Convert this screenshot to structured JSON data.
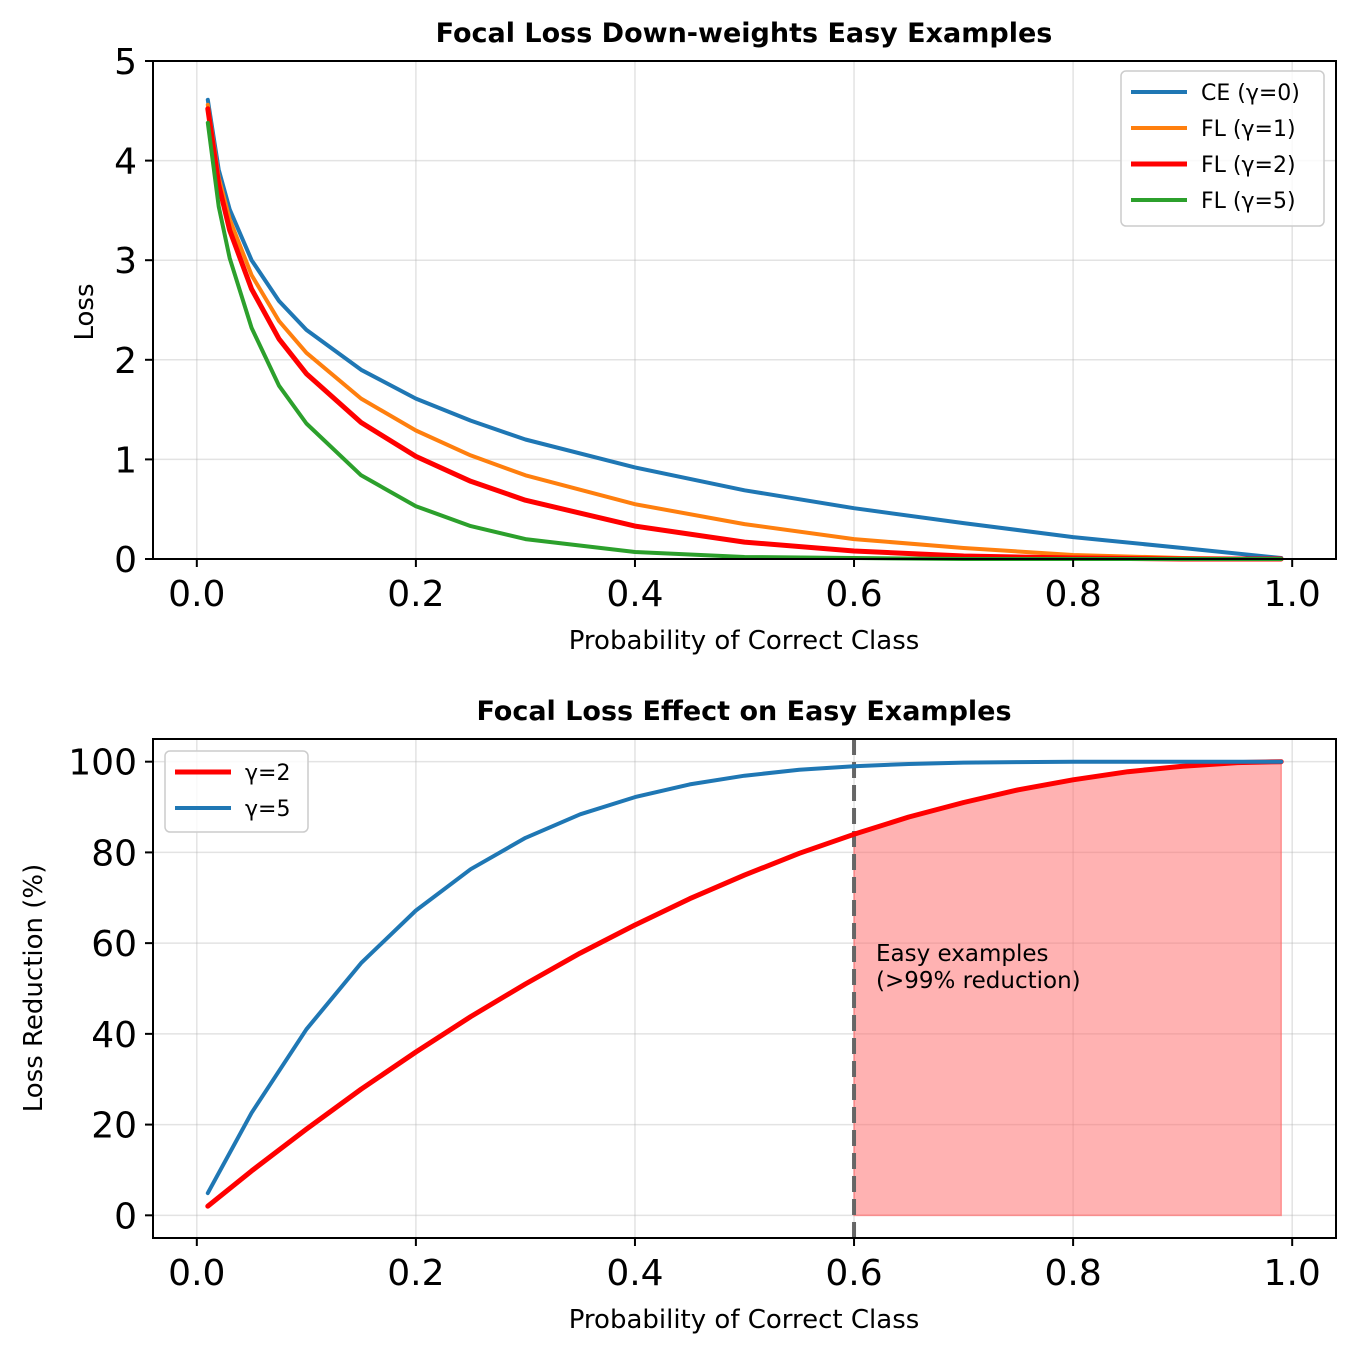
{
  "chart_data": [
    {
      "type": "line",
      "title": "Focal Loss Down-weights Easy Examples",
      "xlabel": "Probability of Correct Class",
      "ylabel": "Loss",
      "xlim": [
        -0.04,
        1.04
      ],
      "ylim": [
        0,
        5
      ],
      "xticks": [
        "0.0",
        "0.2",
        "0.4",
        "0.6",
        "0.8",
        "1.0"
      ],
      "yticks": [
        "0",
        "1",
        "2",
        "3",
        "4",
        "5"
      ],
      "grid": true,
      "legend_position": "top-right",
      "x": [
        0.01,
        0.02,
        0.03,
        0.05,
        0.075,
        0.1,
        0.15,
        0.2,
        0.25,
        0.3,
        0.4,
        0.5,
        0.6,
        0.7,
        0.8,
        0.9,
        0.99
      ],
      "series": [
        {
          "name": "CE (γ=0)",
          "color": "#1f77b4",
          "width": 4,
          "values": [
            4.61,
            3.91,
            3.51,
            3.0,
            2.59,
            2.3,
            1.9,
            1.61,
            1.39,
            1.2,
            0.92,
            0.69,
            0.51,
            0.36,
            0.22,
            0.11,
            0.01
          ]
        },
        {
          "name": "FL (γ=1)",
          "color": "#ff7f0e",
          "width": 4,
          "values": [
            4.56,
            3.83,
            3.41,
            2.85,
            2.39,
            2.07,
            1.61,
            1.29,
            1.04,
            0.84,
            0.55,
            0.35,
            0.2,
            0.11,
            0.04,
            0.01,
            0.0
          ]
        },
        {
          "name": "FL (γ=2)",
          "color": "#ff0000",
          "width": 5,
          "values": [
            4.52,
            3.76,
            3.3,
            2.71,
            2.21,
            1.86,
            1.37,
            1.03,
            0.78,
            0.59,
            0.33,
            0.17,
            0.08,
            0.03,
            0.01,
            0.0,
            0.0
          ]
        },
        {
          "name": "FL (γ=5)",
          "color": "#2ca02c",
          "width": 4,
          "values": [
            4.38,
            3.54,
            3.02,
            2.32,
            1.74,
            1.36,
            0.84,
            0.53,
            0.33,
            0.2,
            0.07,
            0.02,
            0.01,
            0.0,
            0.0,
            0.0,
            0.0
          ]
        }
      ]
    },
    {
      "type": "line",
      "title": "Focal Loss Effect on Easy Examples",
      "xlabel": "Probability of Correct Class",
      "ylabel": "Loss Reduction (%)",
      "xlim": [
        -0.04,
        1.04
      ],
      "ylim": [
        -5,
        105
      ],
      "xticks": [
        "0.0",
        "0.2",
        "0.4",
        "0.6",
        "0.8",
        "1.0"
      ],
      "yticks": [
        "0",
        "20",
        "40",
        "60",
        "80",
        "100"
      ],
      "grid": true,
      "legend_position": "top-left",
      "x": [
        0.01,
        0.05,
        0.1,
        0.15,
        0.2,
        0.25,
        0.3,
        0.35,
        0.4,
        0.45,
        0.5,
        0.55,
        0.6,
        0.65,
        0.7,
        0.75,
        0.8,
        0.85,
        0.9,
        0.95,
        0.99
      ],
      "series": [
        {
          "name": "γ=2",
          "color": "#ff0000",
          "width": 5,
          "values": [
            2.0,
            9.8,
            19.0,
            27.8,
            36.0,
            43.8,
            51.0,
            57.8,
            64.0,
            69.8,
            75.0,
            79.8,
            84.0,
            87.8,
            91.0,
            93.8,
            96.0,
            97.8,
            99.0,
            99.8,
            100.0
          ]
        },
        {
          "name": "γ=5",
          "color": "#1f77b4",
          "width": 4,
          "values": [
            4.9,
            22.6,
            41.0,
            55.6,
            67.2,
            76.3,
            83.2,
            88.4,
            92.2,
            95.0,
            96.9,
            98.2,
            99.0,
            99.5,
            99.8,
            99.9,
            100.0,
            100.0,
            100.0,
            100.0,
            100.0
          ]
        }
      ],
      "vline": {
        "x": 0.6,
        "color": "#666666",
        "style": "dashed"
      },
      "shaded_region": {
        "x_start": 0.6,
        "x_end": 0.99,
        "color": "#ff6666"
      },
      "annotation": [
        "Easy examples",
        "(>99% reduction)"
      ]
    }
  ]
}
